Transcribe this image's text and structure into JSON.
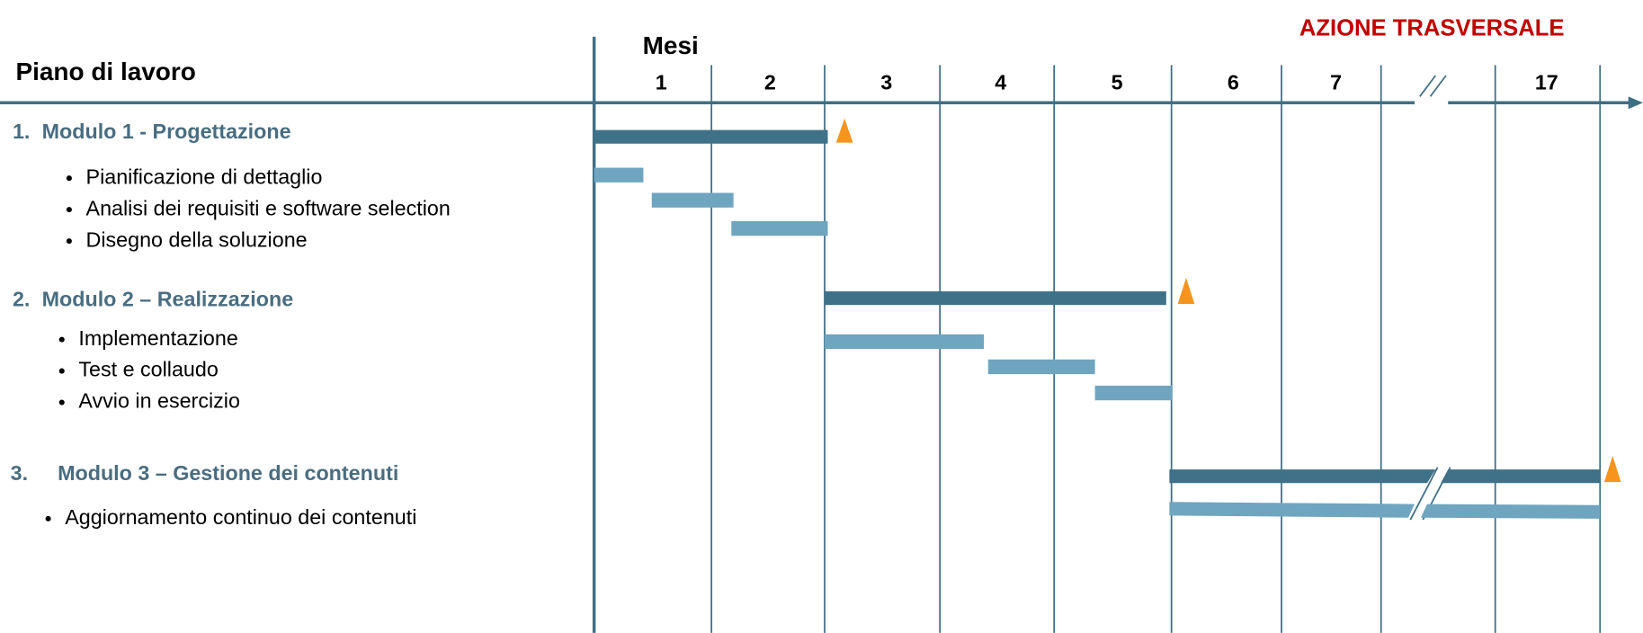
{
  "header": {
    "title": "Piano di lavoro",
    "months_label": "Mesi",
    "note": "AZIONE TRASVERSALE"
  },
  "months": [
    "1",
    "2",
    "3",
    "4",
    "5",
    "6",
    "7",
    "17"
  ],
  "modules": [
    {
      "number": "1.",
      "title": "Modulo 1 - Progettazione",
      "tasks": [
        "Pianificazione di dettaglio",
        "Analisi dei requisiti e software selection",
        "Disegno della soluzione"
      ]
    },
    {
      "number": "2.",
      "title": "Modulo 2 – Realizzazione",
      "tasks": [
        "Implementazione",
        "Test e collaudo",
        "Avvio in esercizio"
      ]
    },
    {
      "number": "3.",
      "title": "Modulo 3 – Gestione dei contenuti",
      "tasks": [
        "Aggiornamento continuo dei contenuti"
      ]
    }
  ]
}
